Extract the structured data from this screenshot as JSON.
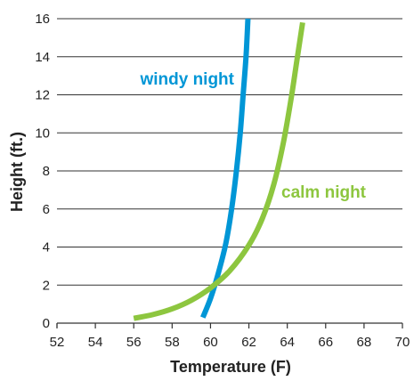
{
  "chart_data": {
    "type": "line",
    "xlabel": "Temperature (F)",
    "ylabel": "Height (ft.)",
    "xlim": [
      52,
      70
    ],
    "ylim": [
      0,
      16
    ],
    "x_ticks": [
      "52",
      "54",
      "56",
      "58",
      "60",
      "62",
      "64",
      "66",
      "68",
      "70"
    ],
    "y_ticks": [
      "0",
      "2",
      "4",
      "6",
      "8",
      "10",
      "12",
      "14",
      "16"
    ],
    "grid": "horizontal",
    "series": [
      {
        "name": "windy night",
        "color": "#0096d6",
        "label_position": "upper-left of curve",
        "points": [
          {
            "x": 59.6,
            "y": 0.3
          },
          {
            "x": 60.0,
            "y": 1.3
          },
          {
            "x": 60.4,
            "y": 2.6
          },
          {
            "x": 60.8,
            "y": 4.2
          },
          {
            "x": 61.1,
            "y": 6.0
          },
          {
            "x": 61.35,
            "y": 8.0
          },
          {
            "x": 61.55,
            "y": 10.0
          },
          {
            "x": 61.7,
            "y": 12.0
          },
          {
            "x": 61.85,
            "y": 14.0
          },
          {
            "x": 61.95,
            "y": 16.0
          }
        ]
      },
      {
        "name": "calm night",
        "color": "#8dc63f",
        "label_position": "right of curve",
        "points": [
          {
            "x": 56.0,
            "y": 0.25
          },
          {
            "x": 57.0,
            "y": 0.45
          },
          {
            "x": 58.0,
            "y": 0.75
          },
          {
            "x": 59.0,
            "y": 1.2
          },
          {
            "x": 60.0,
            "y": 1.85
          },
          {
            "x": 61.0,
            "y": 2.75
          },
          {
            "x": 62.0,
            "y": 4.1
          },
          {
            "x": 62.7,
            "y": 5.5
          },
          {
            "x": 63.3,
            "y": 7.3
          },
          {
            "x": 63.8,
            "y": 9.5
          },
          {
            "x": 64.2,
            "y": 11.8
          },
          {
            "x": 64.5,
            "y": 13.8
          },
          {
            "x": 64.8,
            "y": 15.8
          }
        ]
      }
    ]
  }
}
